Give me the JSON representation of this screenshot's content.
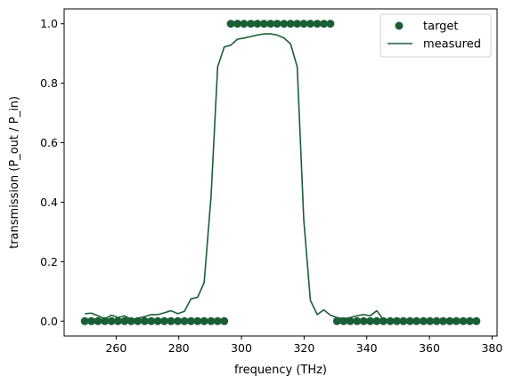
{
  "chart_data": {
    "type": "line",
    "title": "",
    "xlabel": "frequency (THz)",
    "ylabel": "transmission (P_out / P_in)",
    "xlim": [
      243.4,
      381.6
    ],
    "ylim": [
      -0.05,
      1.05
    ],
    "xticks": [
      "260",
      "280",
      "300",
      "320",
      "340",
      "360",
      "380"
    ],
    "xtick_values": [
      260,
      280,
      300,
      320,
      340,
      360,
      380
    ],
    "yticks": [
      "0.0",
      "0.2",
      "0.4",
      "0.6",
      "0.8",
      "1.0"
    ],
    "ytick_values": [
      0.0,
      0.2,
      0.4,
      0.6,
      0.8,
      1.0
    ],
    "legend_position": "top-right",
    "color": "#1a5e36",
    "series": [
      {
        "name": "target",
        "kind": "scatter",
        "x": [
          250.0,
          252.1,
          254.2,
          256.4,
          258.5,
          260.6,
          262.7,
          264.8,
          266.9,
          269.1,
          271.2,
          273.3,
          275.4,
          277.5,
          279.7,
          281.8,
          283.9,
          286.0,
          288.1,
          290.3,
          292.4,
          294.5,
          296.6,
          298.7,
          300.8,
          303.0,
          305.1,
          307.2,
          309.3,
          311.4,
          313.6,
          315.7,
          317.8,
          319.9,
          322.0,
          324.2,
          326.3,
          328.4,
          330.5,
          332.6,
          334.7,
          336.9,
          339.0,
          341.1,
          343.2,
          345.3,
          347.5,
          349.6,
          351.7,
          353.8,
          355.9,
          358.1,
          360.2,
          362.3,
          364.4,
          366.5,
          368.6,
          370.8,
          372.9,
          375.0
        ],
        "y": [
          0,
          0,
          0,
          0,
          0,
          0,
          0,
          0,
          0,
          0,
          0,
          0,
          0,
          0,
          0,
          0,
          0,
          0,
          0,
          0,
          0,
          0,
          1,
          1,
          1,
          1,
          1,
          1,
          1,
          1,
          1,
          1,
          1,
          1,
          1,
          1,
          1,
          1,
          0,
          0,
          0,
          0,
          0,
          0,
          0,
          0,
          0,
          0,
          0,
          0,
          0,
          0,
          0,
          0,
          0,
          0,
          0,
          0,
          0,
          0
        ]
      },
      {
        "name": "measured",
        "kind": "line",
        "x": [
          250.0,
          252.1,
          254.2,
          256.4,
          258.5,
          260.6,
          262.7,
          264.8,
          266.9,
          269.1,
          271.2,
          273.3,
          275.4,
          277.5,
          279.7,
          281.8,
          283.9,
          286.0,
          288.1,
          290.3,
          292.4,
          294.5,
          296.6,
          298.7,
          300.8,
          303.0,
          305.1,
          307.2,
          309.3,
          311.4,
          313.6,
          315.7,
          317.8,
          319.9,
          322.0,
          324.2,
          326.3,
          328.4,
          330.5,
          332.6,
          334.7,
          336.9,
          339.0,
          341.1,
          343.2,
          345.3,
          347.5,
          349.6,
          351.7,
          353.8,
          355.9,
          358.1,
          360.2,
          362.3,
          364.4,
          366.5,
          368.6,
          370.8,
          372.9,
          375.0
        ],
        "y": [
          0.025,
          0.027,
          0.018,
          0.008,
          0.02,
          0.012,
          0.018,
          0.005,
          0.01,
          0.015,
          0.022,
          0.022,
          0.028,
          0.035,
          0.025,
          0.033,
          0.075,
          0.08,
          0.13,
          0.42,
          0.855,
          0.922,
          0.928,
          0.948,
          0.952,
          0.957,
          0.962,
          0.966,
          0.966,
          0.962,
          0.952,
          0.932,
          0.855,
          0.34,
          0.07,
          0.022,
          0.038,
          0.02,
          0.012,
          0.008,
          0.012,
          0.018,
          0.022,
          0.018,
          0.035,
          0.005,
          0.003,
          0.005,
          0.003,
          0.002,
          0.004,
          0.002,
          0.003,
          0.002,
          0.001,
          0.002,
          0.001,
          0.002,
          0.001,
          0.001
        ]
      }
    ]
  }
}
